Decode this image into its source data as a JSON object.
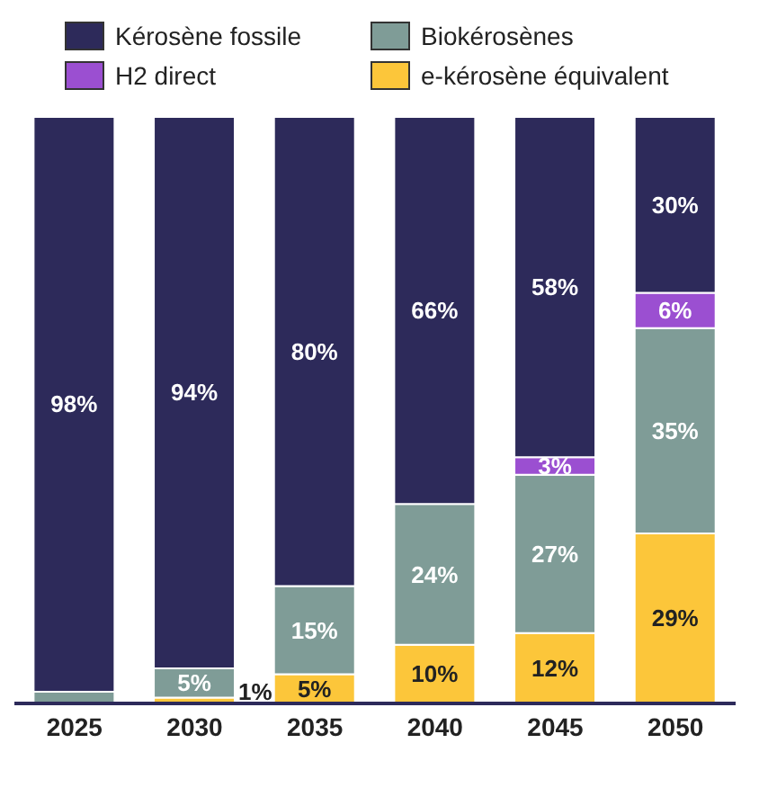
{
  "chart_data": {
    "type": "bar",
    "stacked": true,
    "categories": [
      "2025",
      "2030",
      "2035",
      "2040",
      "2045",
      "2050"
    ],
    "series": [
      {
        "name": "e-kérosène équivalent",
        "color": "#fcc63a",
        "values": [
          null,
          1,
          5,
          10,
          12,
          29
        ],
        "value_labels": [
          null,
          "1%",
          "5%",
          "10%",
          "12%",
          "29%"
        ]
      },
      {
        "name": "Biokérosènes",
        "color": "#7f9c97",
        "values": [
          2,
          5,
          15,
          24,
          27,
          35
        ],
        "value_labels": [
          null,
          "5%",
          "15%",
          "24%",
          "27%",
          "35%"
        ]
      },
      {
        "name": "H2 direct",
        "color": "#9b4fd1",
        "values": [
          null,
          null,
          null,
          null,
          3,
          6
        ],
        "value_labels": [
          null,
          null,
          null,
          null,
          "3%",
          "6%"
        ]
      },
      {
        "name": "Kérosène fossile",
        "color": "#2d2a5a",
        "values": [
          98,
          94,
          80,
          66,
          58,
          30
        ],
        "value_labels": [
          "98%",
          "94%",
          "80%",
          "66%",
          "58%",
          "30%"
        ]
      }
    ],
    "legend": "top left"
  }
}
